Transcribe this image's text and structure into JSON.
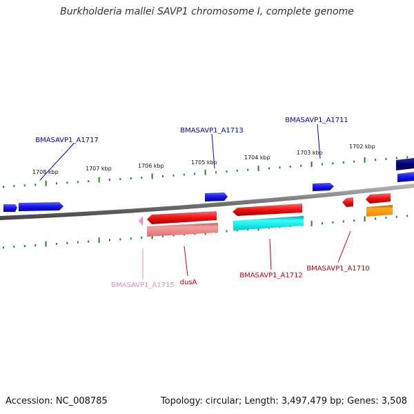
{
  "title": "Burkholderia mallei SAVP1 chromosome I, complete genome",
  "footer": {
    "accession": "Accession: NC_008785",
    "summary": "Topology: circular; Length: 3,497,479 bp; Genes: 3,508"
  },
  "ruler": {
    "tick_labels": [
      "1708 kbp",
      "1707 kbp",
      "1706 kbp",
      "1705 kbp",
      "1704 kbp",
      "1703 kbp",
      "1702 kbp"
    ]
  },
  "genes": {
    "forward": [
      {
        "label": "BMASAVP1_A1717",
        "color": "#0000cc"
      },
      {
        "label": "BMASAVP1_A1713",
        "color": "#0000cc"
      },
      {
        "label": "BMASAVP1_A1711",
        "color": "#0000cc"
      }
    ],
    "reverse": [
      {
        "label": "BMASAVP1_A1715",
        "color": "#ee88bb"
      },
      {
        "label": "dusA",
        "color": "#cc0000"
      },
      {
        "label": "BMASAVP1_A1712",
        "color": "#cc0000"
      },
      {
        "label": "BMASAVP1_A1710",
        "color": "#cc0000"
      }
    ]
  },
  "colors": {
    "forward_cds": "#1a1aee",
    "reverse_cds": "#ee1111",
    "reverse_rna": "#ee8888",
    "cyan_track": "#00eeee",
    "orange_track": "#ff9900",
    "navy_track": "#000077",
    "pink_cds": "#ff88cc",
    "tick_color": "#228822",
    "backbone": "#777777"
  }
}
